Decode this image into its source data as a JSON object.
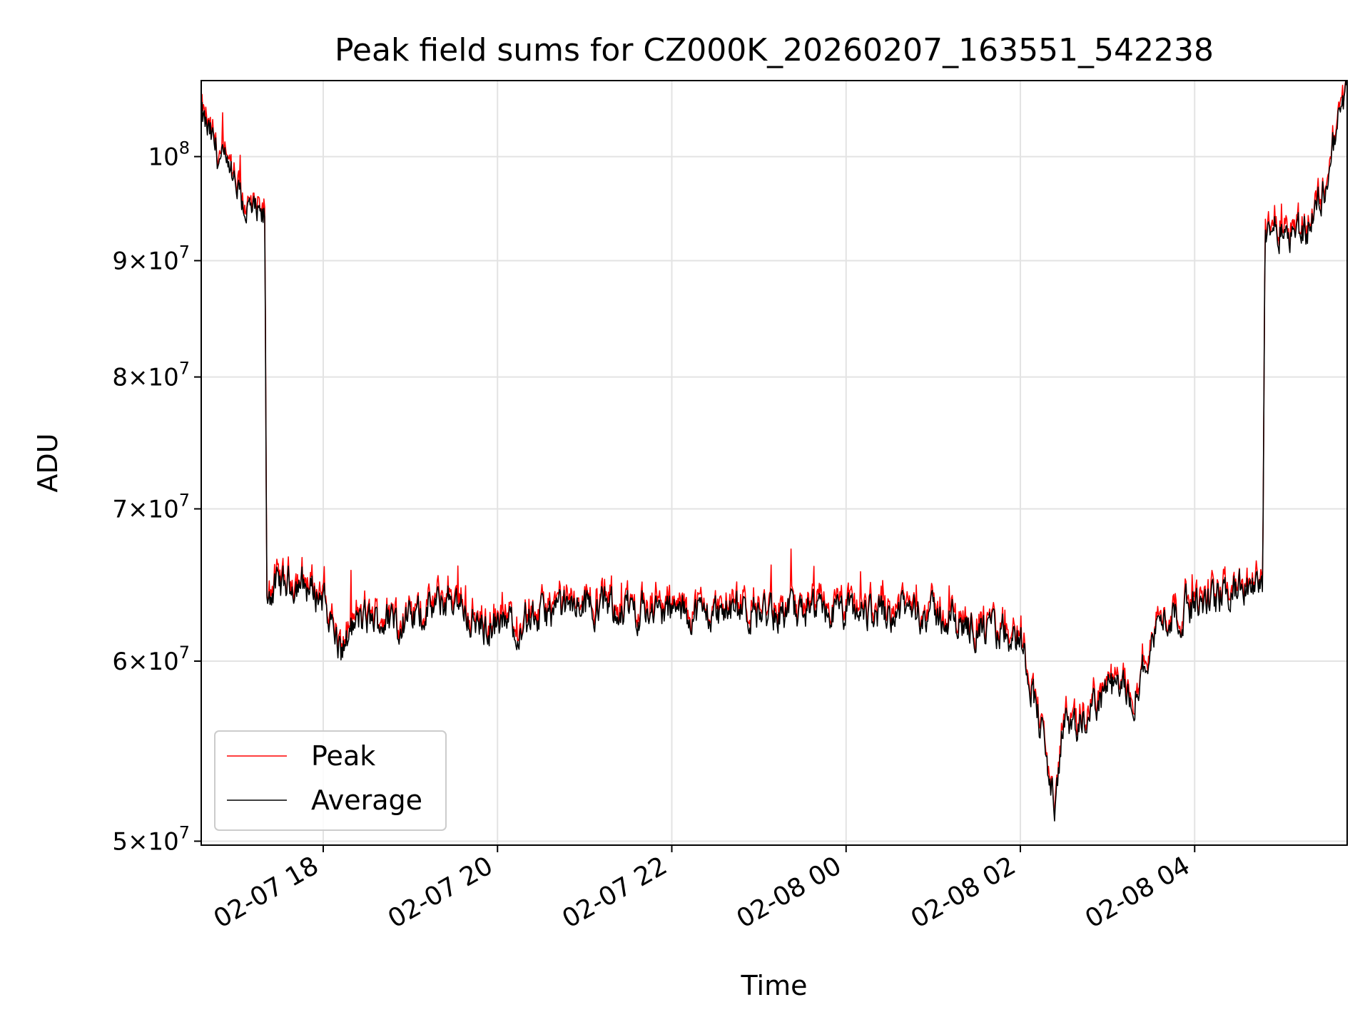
{
  "chart_data": {
    "type": "line",
    "title": "Peak field sums for CZ000K_20260207_163551_542238",
    "xlabel": "Time",
    "ylabel": "ADU",
    "yscale": "log",
    "ylim": [
      49800000,
      108000000
    ],
    "xlim_hours": [
      16.6,
      29.75
    ],
    "grid": true,
    "legend_position": "lower-left",
    "x_ticks": [
      {
        "hour": 18,
        "label": "02-07 18"
      },
      {
        "hour": 20,
        "label": "02-07 20"
      },
      {
        "hour": 22,
        "label": "02-07 22"
      },
      {
        "hour": 24,
        "label": "02-08 00"
      },
      {
        "hour": 26,
        "label": "02-08 02"
      },
      {
        "hour": 28,
        "label": "02-08 04"
      }
    ],
    "y_ticks": [
      {
        "value": 50000000,
        "mant": "5",
        "exp": "7"
      },
      {
        "value": 60000000,
        "mant": "6",
        "exp": "7"
      },
      {
        "value": 70000000,
        "mant": "7",
        "exp": "7"
      },
      {
        "value": 80000000,
        "mant": "8",
        "exp": "7"
      },
      {
        "value": 90000000,
        "mant": "9",
        "exp": "7"
      },
      {
        "value": 100000000,
        "mant": "",
        "exp": "8"
      }
    ],
    "series": [
      {
        "name": "Peak",
        "color": "#ff0000",
        "spike_factor": 1.012
      },
      {
        "name": "Average",
        "color": "#000000",
        "spike_factor": 1.0
      }
    ],
    "profile_hours": [
      16.6,
      16.85,
      17.1,
      17.3,
      17.33,
      17.35,
      17.4,
      17.7,
      18.0,
      18.2,
      18.4,
      19.0,
      19.5,
      19.8,
      20.3,
      21.0,
      22.0,
      23.0,
      24.0,
      24.8,
      25.5,
      26.0,
      26.2,
      26.4,
      26.5,
      26.6,
      27.0,
      27.3,
      27.6,
      28.0,
      28.5,
      28.78,
      28.81,
      29.0,
      29.3,
      29.5,
      29.75
    ],
    "profile_values": [
      104000000,
      99000000,
      95000000,
      93500000,
      94000000,
      64000000,
      64500000,
      65000000,
      64000000,
      60500000,
      62500000,
      62500000,
      64000000,
      62000000,
      62500000,
      63500000,
      63000000,
      63000000,
      63000000,
      63200000,
      62000000,
      61500000,
      57000000,
      51500000,
      57000000,
      55500000,
      58500000,
      58000000,
      62500000,
      63500000,
      64500000,
      64500000,
      93500000,
      93000000,
      93000000,
      97000000,
      108000000
    ]
  }
}
